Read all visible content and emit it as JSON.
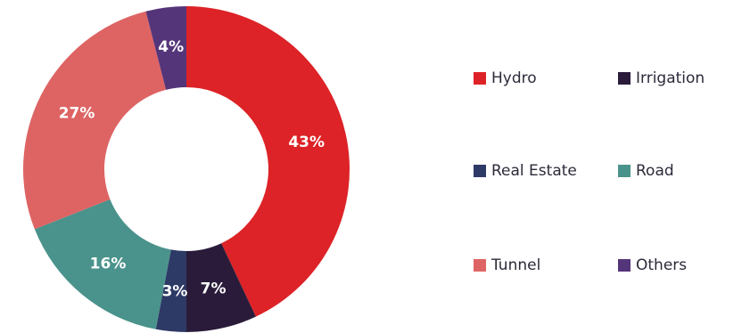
{
  "chart_data": {
    "type": "pie",
    "style": "donut",
    "categories": [
      "Hydro",
      "Irrigation",
      "Real Estate",
      "Road",
      "Tunnel",
      "Others"
    ],
    "values": [
      43,
      7,
      3,
      16,
      27,
      4
    ],
    "labels": [
      "43%",
      "7%",
      "3%",
      "16%",
      "27%",
      "4%"
    ],
    "colors": [
      "#dd2327",
      "#2a1b3a",
      "#2e3a66",
      "#4a938c",
      "#de6464",
      "#55357a"
    ],
    "legend_position": "right",
    "legend": [
      {
        "label": "Hydro",
        "color": "#dd2327"
      },
      {
        "label": "Irrigation",
        "color": "#2a1b3a"
      },
      {
        "label": "Real Estate",
        "color": "#2e3a66"
      },
      {
        "label": "Road",
        "color": "#4a938c"
      },
      {
        "label": "Tunnel",
        "color": "#de6464"
      },
      {
        "label": "Others",
        "color": "#55357a"
      }
    ]
  }
}
